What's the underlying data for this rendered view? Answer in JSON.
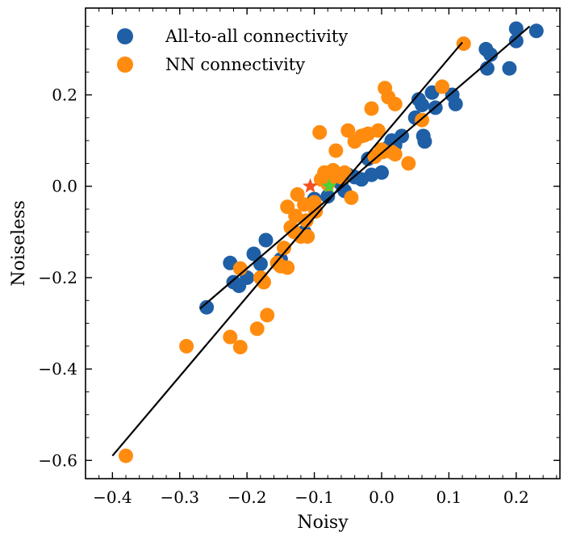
{
  "chart_data": {
    "type": "scatter",
    "title": "",
    "xlabel": "Noisy",
    "ylabel": "Noiseless",
    "xlim": [
      -0.44,
      0.265
    ],
    "ylim": [
      -0.64,
      0.39
    ],
    "xticks": [
      -0.4,
      -0.3,
      -0.2,
      -0.1,
      0.0,
      0.1,
      0.2
    ],
    "xtick_labels": [
      "−0.4",
      "−0.3",
      "−0.2",
      "−0.1",
      "0.0",
      "0.1",
      "0.2"
    ],
    "yticks": [
      -0.6,
      -0.4,
      -0.2,
      0.0,
      0.2
    ],
    "ytick_labels": [
      "−0.6",
      "−0.4",
      "−0.2",
      "0.0",
      "0.2"
    ],
    "grid": false,
    "legend_position": "top-left",
    "series": [
      {
        "name": "All-to-all connectivity",
        "color": "#1f5fa6",
        "points": [
          [
            -0.26,
            -0.265
          ],
          [
            -0.225,
            -0.168
          ],
          [
            -0.22,
            -0.21
          ],
          [
            -0.212,
            -0.218
          ],
          [
            -0.2,
            -0.2
          ],
          [
            -0.19,
            -0.148
          ],
          [
            -0.18,
            -0.17
          ],
          [
            -0.172,
            -0.118
          ],
          [
            -0.15,
            -0.16
          ],
          [
            -0.12,
            -0.108
          ],
          [
            -0.115,
            -0.1
          ],
          [
            -0.1,
            -0.028
          ],
          [
            -0.08,
            -0.022
          ],
          [
            -0.06,
            0.005
          ],
          [
            -0.055,
            -0.01
          ],
          [
            -0.05,
            0.025
          ],
          [
            -0.04,
            0.02
          ],
          [
            -0.03,
            0.015
          ],
          [
            -0.02,
            0.06
          ],
          [
            -0.015,
            0.025
          ],
          [
            0.0,
            0.03
          ],
          [
            0.005,
            0.08
          ],
          [
            0.01,
            0.085
          ],
          [
            0.015,
            0.1
          ],
          [
            0.02,
            0.09
          ],
          [
            0.03,
            0.11
          ],
          [
            0.05,
            0.15
          ],
          [
            0.055,
            0.19
          ],
          [
            0.06,
            0.178
          ],
          [
            0.062,
            0.11
          ],
          [
            0.064,
            0.098
          ],
          [
            0.075,
            0.205
          ],
          [
            0.08,
            0.172
          ],
          [
            0.105,
            0.2
          ],
          [
            0.11,
            0.18
          ],
          [
            0.155,
            0.3
          ],
          [
            0.157,
            0.258
          ],
          [
            0.162,
            0.288
          ],
          [
            0.19,
            0.258
          ],
          [
            0.2,
            0.318
          ],
          [
            0.2,
            0.345
          ],
          [
            0.23,
            0.34
          ]
        ]
      },
      {
        "name": "NN connectivity",
        "color": "#ff8c0f",
        "points": [
          [
            -0.38,
            -0.59
          ],
          [
            -0.29,
            -0.35
          ],
          [
            -0.225,
            -0.33
          ],
          [
            -0.21,
            -0.352
          ],
          [
            -0.21,
            -0.18
          ],
          [
            -0.185,
            -0.312
          ],
          [
            -0.18,
            -0.2
          ],
          [
            -0.175,
            -0.21
          ],
          [
            -0.17,
            -0.282
          ],
          [
            -0.155,
            -0.168
          ],
          [
            -0.15,
            -0.175
          ],
          [
            -0.145,
            -0.135
          ],
          [
            -0.14,
            -0.178
          ],
          [
            -0.14,
            -0.045
          ],
          [
            -0.135,
            -0.09
          ],
          [
            -0.13,
            -0.1
          ],
          [
            -0.128,
            -0.065
          ],
          [
            -0.125,
            -0.018
          ],
          [
            -0.12,
            -0.11
          ],
          [
            -0.115,
            -0.04
          ],
          [
            -0.112,
            -0.075
          ],
          [
            -0.11,
            -0.11
          ],
          [
            -0.1,
            -0.035
          ],
          [
            -0.098,
            -0.055
          ],
          [
            -0.092,
            0.118
          ],
          [
            -0.09,
            0.015
          ],
          [
            -0.085,
            0.03
          ],
          [
            -0.08,
            0.005
          ],
          [
            -0.075,
            0.018
          ],
          [
            -0.072,
            0.035
          ],
          [
            -0.068,
            0.078
          ],
          [
            -0.065,
            0.025
          ],
          [
            -0.06,
            0.02
          ],
          [
            -0.055,
            0.03
          ],
          [
            -0.05,
            0.122
          ],
          [
            -0.045,
            -0.025
          ],
          [
            -0.04,
            0.098
          ],
          [
            -0.03,
            0.11
          ],
          [
            -0.025,
            0.112
          ],
          [
            -0.02,
            0.115
          ],
          [
            -0.015,
            0.17
          ],
          [
            -0.01,
            0.065
          ],
          [
            -0.005,
            0.122
          ],
          [
            0.0,
            0.08
          ],
          [
            0.002,
            0.075
          ],
          [
            0.005,
            0.215
          ],
          [
            0.01,
            0.195
          ],
          [
            0.015,
            0.075
          ],
          [
            0.02,
            0.07
          ],
          [
            0.02,
            0.18
          ],
          [
            0.04,
            0.05
          ],
          [
            0.06,
            0.145
          ],
          [
            0.09,
            0.218
          ],
          [
            0.122,
            0.312
          ]
        ]
      }
    ],
    "fit_lines": [
      {
        "name": "All-to-all fit",
        "x": [
          -0.27,
          0.22
        ],
        "y": [
          -0.268,
          0.35
        ]
      },
      {
        "name": "NN fit",
        "x": [
          -0.4,
          0.12
        ],
        "y": [
          -0.59,
          0.315
        ]
      }
    ],
    "annotations": [
      {
        "name": "noisy-mean-star",
        "marker": "star",
        "color": "#f4511e",
        "x": -0.106,
        "y": 0.0
      },
      {
        "name": "noiseless-mean-star",
        "marker": "star",
        "color": "#4cd137",
        "x": -0.078,
        "y": 0.0
      }
    ]
  }
}
